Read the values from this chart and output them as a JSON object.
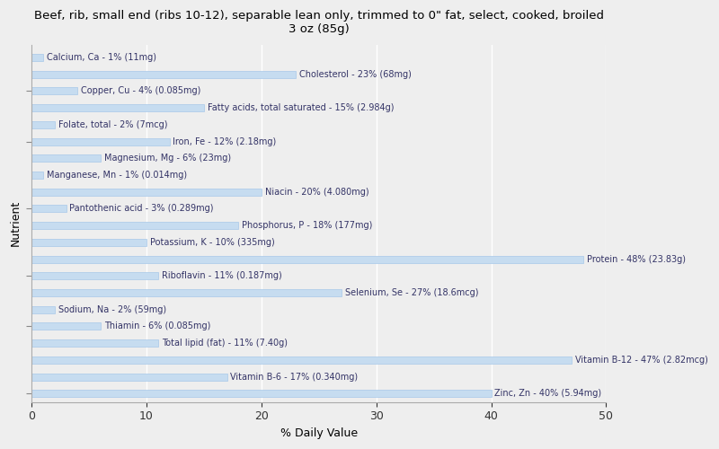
{
  "title": "Beef, rib, small end (ribs 10-12), separable lean only, trimmed to 0\" fat, select, cooked, broiled\n3 oz (85g)",
  "xlabel": "% Daily Value",
  "ylabel": "Nutrient",
  "background_color": "#eeeeee",
  "bar_color": "#c6dcf0",
  "bar_edge_color": "#a8c8e8",
  "text_color": "#333366",
  "xlim": [
    0,
    50
  ],
  "nutrients": [
    {
      "label": "Calcium, Ca - 1% (11mg)",
      "value": 1
    },
    {
      "label": "Cholesterol - 23% (68mg)",
      "value": 23
    },
    {
      "label": "Copper, Cu - 4% (0.085mg)",
      "value": 4
    },
    {
      "label": "Fatty acids, total saturated - 15% (2.984g)",
      "value": 15
    },
    {
      "label": "Folate, total - 2% (7mcg)",
      "value": 2
    },
    {
      "label": "Iron, Fe - 12% (2.18mg)",
      "value": 12
    },
    {
      "label": "Magnesium, Mg - 6% (23mg)",
      "value": 6
    },
    {
      "label": "Manganese, Mn - 1% (0.014mg)",
      "value": 1
    },
    {
      "label": "Niacin - 20% (4.080mg)",
      "value": 20
    },
    {
      "label": "Pantothenic acid - 3% (0.289mg)",
      "value": 3
    },
    {
      "label": "Phosphorus, P - 18% (177mg)",
      "value": 18
    },
    {
      "label": "Potassium, K - 10% (335mg)",
      "value": 10
    },
    {
      "label": "Protein - 48% (23.83g)",
      "value": 48
    },
    {
      "label": "Riboflavin - 11% (0.187mg)",
      "value": 11
    },
    {
      "label": "Selenium, Se - 27% (18.6mcg)",
      "value": 27
    },
    {
      "label": "Sodium, Na - 2% (59mg)",
      "value": 2
    },
    {
      "label": "Thiamin - 6% (0.085mg)",
      "value": 6
    },
    {
      "label": "Total lipid (fat) - 11% (7.40g)",
      "value": 11
    },
    {
      "label": "Vitamin B-12 - 47% (2.82mcg)",
      "value": 47
    },
    {
      "label": "Vitamin B-6 - 17% (0.340mg)",
      "value": 17
    },
    {
      "label": "Zinc, Zn - 40% (5.94mg)",
      "value": 40
    }
  ]
}
